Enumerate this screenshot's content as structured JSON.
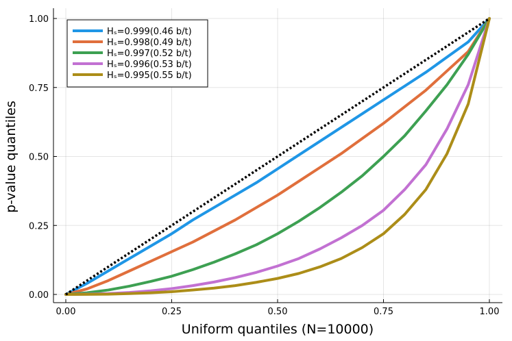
{
  "chart_data": {
    "type": "line",
    "title": "",
    "xlabel": "Uniform quantiles (N=10000)",
    "ylabel": "p-value quantiles",
    "xlim": [
      0.0,
      1.0
    ],
    "ylim": [
      0.0,
      1.0
    ],
    "xticks": [
      "0.00",
      "0.25",
      "0.50",
      "0.75",
      "1.00"
    ],
    "yticks": [
      "0.00",
      "0.25",
      "0.50",
      "0.75",
      "1.00"
    ],
    "grid": true,
    "legend_position": "top-left",
    "reference_line": {
      "style": "dotted",
      "color": "#000000",
      "x": [
        0,
        1
      ],
      "y": [
        0,
        1
      ]
    },
    "series": [
      {
        "name": "Hₛ=0.999(0.46 b/t)",
        "color": "#1f96e6",
        "x": [
          0,
          0.05,
          0.1,
          0.15,
          0.2,
          0.25,
          0.3,
          0.35,
          0.4,
          0.45,
          0.5,
          0.55,
          0.6,
          0.65,
          0.7,
          0.75,
          0.8,
          0.85,
          0.9,
          0.95,
          1.0
        ],
        "y": [
          0,
          0.04,
          0.085,
          0.13,
          0.175,
          0.22,
          0.27,
          0.315,
          0.36,
          0.405,
          0.455,
          0.505,
          0.555,
          0.605,
          0.655,
          0.705,
          0.755,
          0.805,
          0.86,
          0.915,
          1.0
        ]
      },
      {
        "name": "Hₛ=0.998(0.49 b/t)",
        "color": "#e06f3c",
        "x": [
          0,
          0.05,
          0.1,
          0.15,
          0.2,
          0.25,
          0.3,
          0.35,
          0.4,
          0.45,
          0.5,
          0.55,
          0.6,
          0.65,
          0.7,
          0.75,
          0.8,
          0.85,
          0.9,
          0.95,
          1.0
        ],
        "y": [
          0,
          0.02,
          0.05,
          0.085,
          0.12,
          0.155,
          0.19,
          0.23,
          0.27,
          0.315,
          0.36,
          0.41,
          0.46,
          0.51,
          0.565,
          0.62,
          0.68,
          0.74,
          0.81,
          0.88,
          1.0
        ]
      },
      {
        "name": "Hₛ=0.997(0.52 b/t)",
        "color": "#3da052",
        "x": [
          0,
          0.05,
          0.1,
          0.15,
          0.2,
          0.25,
          0.3,
          0.35,
          0.4,
          0.45,
          0.5,
          0.55,
          0.6,
          0.65,
          0.7,
          0.75,
          0.8,
          0.85,
          0.9,
          0.95,
          1.0
        ],
        "y": [
          0,
          0.006,
          0.016,
          0.03,
          0.047,
          0.066,
          0.09,
          0.117,
          0.147,
          0.18,
          0.22,
          0.265,
          0.315,
          0.37,
          0.43,
          0.5,
          0.575,
          0.665,
          0.76,
          0.87,
          1.0
        ]
      },
      {
        "name": "Hₛ=0.996(0.53 b/t)",
        "color": "#c271d2",
        "x": [
          0,
          0.05,
          0.1,
          0.15,
          0.2,
          0.25,
          0.3,
          0.35,
          0.4,
          0.45,
          0.5,
          0.55,
          0.6,
          0.65,
          0.7,
          0.75,
          0.8,
          0.85,
          0.9,
          0.95,
          1.0
        ],
        "y": [
          0,
          0.001,
          0.003,
          0.007,
          0.013,
          0.021,
          0.032,
          0.045,
          0.061,
          0.08,
          0.103,
          0.13,
          0.165,
          0.205,
          0.25,
          0.305,
          0.38,
          0.47,
          0.6,
          0.76,
          1.0
        ]
      },
      {
        "name": "Hₛ=0.995(0.55 b/t)",
        "color": "#ac8d18",
        "x": [
          0,
          0.05,
          0.1,
          0.15,
          0.2,
          0.25,
          0.3,
          0.35,
          0.4,
          0.45,
          0.5,
          0.55,
          0.6,
          0.65,
          0.7,
          0.75,
          0.8,
          0.85,
          0.9,
          0.95,
          1.0
        ],
        "y": [
          0,
          0.0003,
          0.001,
          0.003,
          0.006,
          0.01,
          0.016,
          0.023,
          0.032,
          0.044,
          0.058,
          0.076,
          0.1,
          0.13,
          0.17,
          0.22,
          0.29,
          0.38,
          0.51,
          0.69,
          1.0
        ]
      }
    ]
  }
}
